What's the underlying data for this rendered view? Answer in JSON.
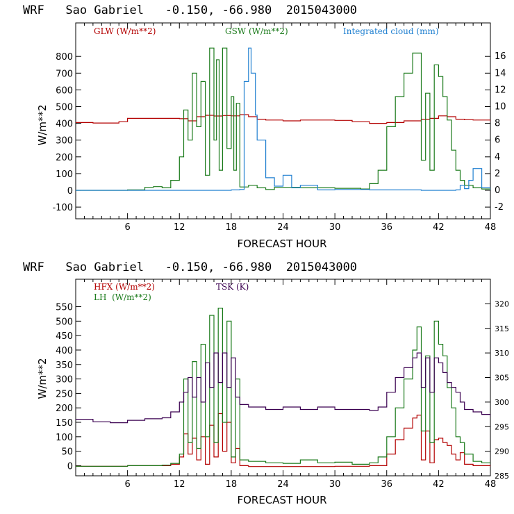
{
  "chart_data": [
    {
      "type": "line",
      "title": "WRF   Sao Gabriel   -0.150, -66.980  2015043000",
      "xlabel": "FORECAST HOUR",
      "ylabel": "W/m**2",
      "xlim": [
        0,
        48
      ],
      "ylim": [
        -170,
        1000
      ],
      "y2lim": [
        -3.4,
        20
      ],
      "xticks": [
        "6",
        "12",
        "18",
        "24",
        "30",
        "36",
        "42",
        "48"
      ],
      "yticks": [
        "-100",
        "0",
        "100",
        "200",
        "300",
        "400",
        "500",
        "600",
        "700",
        "800"
      ],
      "y2ticks": [
        "-2",
        "0",
        "2",
        "4",
        "6",
        "8",
        "10",
        "12",
        "14",
        "16"
      ],
      "legend": [
        {
          "label": "GLW (W/m**2)",
          "color": "#b30000"
        },
        {
          "label": "GSW (W/m**2)",
          "color": "#1a7a1a"
        },
        {
          "label": "Integrated cloud (mm)",
          "color": "#1e7fd0"
        }
      ],
      "series": [
        {
          "name": "GLW",
          "axis": "left",
          "color": "#b30000",
          "x": [
            0,
            2,
            4,
            5,
            6,
            8,
            10,
            12,
            13,
            14,
            15,
            16,
            17,
            18,
            19,
            20,
            21,
            22,
            24,
            26,
            28,
            30,
            32,
            34,
            36,
            38,
            40,
            41,
            42,
            43,
            44,
            45,
            46,
            48
          ],
          "y": [
            405,
            402,
            402,
            410,
            430,
            430,
            430,
            428,
            415,
            440,
            448,
            444,
            447,
            445,
            452,
            440,
            425,
            420,
            415,
            420,
            420,
            418,
            410,
            400,
            405,
            415,
            425,
            430,
            445,
            440,
            425,
            422,
            420,
            412
          ]
        },
        {
          "name": "GSW",
          "axis": "left",
          "color": "#1a7a1a",
          "x": [
            0,
            6,
            8,
            9,
            10,
            11,
            12,
            12.5,
            13,
            13.5,
            14,
            14.5,
            15,
            15.5,
            16,
            16.3,
            16.6,
            17,
            17.5,
            18,
            18.3,
            18.6,
            19,
            20,
            21,
            22,
            23,
            26,
            30,
            33,
            34,
            35,
            36,
            37,
            38,
            39,
            40,
            40.5,
            41,
            41.5,
            42,
            42.5,
            43,
            43.5,
            44,
            44.5,
            45,
            46,
            47,
            48
          ],
          "y": [
            0,
            3,
            18,
            22,
            15,
            60,
            200,
            480,
            300,
            700,
            380,
            650,
            90,
            850,
            300,
            780,
            120,
            850,
            250,
            560,
            120,
            520,
            20,
            30,
            15,
            5,
            18,
            15,
            12,
            8,
            40,
            120,
            380,
            560,
            700,
            820,
            180,
            580,
            120,
            750,
            680,
            560,
            420,
            240,
            120,
            60,
            30,
            15,
            8,
            5
          ]
        },
        {
          "name": "Integrated cloud",
          "axis": "right",
          "color": "#1e7fd0",
          "x": [
            0,
            10,
            18,
            19,
            19.5,
            20,
            20.3,
            20.8,
            21,
            22,
            23,
            24,
            25,
            26,
            28,
            30,
            34,
            40,
            44,
            44.5,
            45,
            45.5,
            46,
            47,
            48
          ],
          "y": [
            0,
            0,
            0.05,
            0.1,
            13,
            17,
            14,
            9,
            6,
            1.5,
            0.5,
            1.8,
            0.3,
            0.6,
            0.05,
            0.1,
            0.05,
            0,
            0.05,
            0.6,
            0.2,
            1.2,
            2.6,
            0.3,
            0
          ]
        }
      ]
    },
    {
      "type": "line",
      "title": "WRF   Sao Gabriel   -0.150, -66.980  2015043000",
      "xlabel": "FORECAST HOUR",
      "ylabel": "W/m**2",
      "xlim": [
        0,
        48
      ],
      "ylim": [
        -35,
        645
      ],
      "y2lim": [
        285,
        325
      ],
      "xticks": [
        "6",
        "12",
        "18",
        "24",
        "30",
        "36",
        "42",
        "48"
      ],
      "yticks": [
        "0",
        "50",
        "100",
        "150",
        "200",
        "250",
        "300",
        "350",
        "400",
        "450",
        "500",
        "550"
      ],
      "y2ticks": [
        "285",
        "290",
        "295",
        "300",
        "305",
        "310",
        "315",
        "320"
      ],
      "legend": [
        {
          "label": "HFX (W/m**2)",
          "color": "#b30000"
        },
        {
          "label": "LH  (W/m**2)",
          "color": "#1a7a1a"
        },
        {
          "label": "TSK (K)",
          "color": "#3a0050"
        }
      ],
      "series": [
        {
          "name": "HFX",
          "axis": "left",
          "color": "#b30000",
          "x": [
            0,
            6,
            10,
            11,
            12,
            12.5,
            13,
            13.5,
            14,
            14.5,
            15,
            15.5,
            16,
            16.5,
            17,
            17.5,
            18,
            18.5,
            19,
            20,
            24,
            30,
            34,
            36,
            37,
            38,
            39,
            39.5,
            40,
            40.5,
            41,
            41.5,
            42,
            42.5,
            43,
            43.5,
            44,
            44.5,
            45,
            46,
            48
          ],
          "y": [
            -2,
            0,
            0,
            5,
            30,
            110,
            40,
            95,
            20,
            100,
            5,
            140,
            30,
            180,
            50,
            150,
            10,
            60,
            0,
            -3,
            -3,
            -2,
            0,
            40,
            90,
            130,
            165,
            175,
            20,
            120,
            10,
            90,
            95,
            80,
            70,
            40,
            20,
            45,
            5,
            0,
            -3
          ]
        },
        {
          "name": "LH",
          "axis": "left",
          "color": "#1a7a1a",
          "x": [
            0,
            6,
            10,
            11,
            12,
            12.5,
            13,
            13.5,
            14,
            14.5,
            15,
            15.5,
            16,
            16.5,
            17,
            17.5,
            18,
            18.5,
            19,
            20,
            22,
            24,
            26,
            28,
            30,
            32,
            34,
            35,
            36,
            37,
            38,
            39,
            39.5,
            40,
            40.5,
            41,
            41.5,
            42,
            42.5,
            43,
            43.5,
            44,
            44.5,
            45,
            46,
            47,
            48
          ],
          "y": [
            -2,
            0,
            2,
            8,
            40,
            300,
            80,
            360,
            60,
            420,
            100,
            520,
            80,
            545,
            150,
            500,
            30,
            300,
            20,
            15,
            10,
            8,
            20,
            10,
            12,
            5,
            10,
            30,
            100,
            200,
            300,
            400,
            480,
            120,
            380,
            80,
            500,
            420,
            380,
            270,
            200,
            100,
            80,
            40,
            15,
            10,
            8
          ]
        },
        {
          "name": "TSK",
          "axis": "right",
          "color": "#3a0050",
          "x": [
            0,
            2,
            4,
            6,
            8,
            10,
            11,
            12,
            12.5,
            13,
            13.5,
            14,
            14.5,
            15,
            15.5,
            16,
            16.5,
            17,
            17.5,
            18,
            18.5,
            19,
            20,
            22,
            24,
            26,
            28,
            30,
            32,
            34,
            35,
            36,
            37,
            38,
            39,
            39.5,
            40,
            40.5,
            41,
            41.5,
            42,
            42.5,
            43,
            43.5,
            44,
            44.5,
            45,
            46,
            47,
            48
          ],
          "y": [
            296.5,
            296,
            295.8,
            296.3,
            296.6,
            296.8,
            298,
            300,
            302,
            305,
            301,
            305,
            300,
            308,
            303,
            310,
            304,
            310,
            303,
            309,
            301,
            299.5,
            299,
            298.5,
            299,
            298.5,
            299,
            298.5,
            298.5,
            298.3,
            299,
            302,
            305,
            307,
            309,
            310,
            303,
            309,
            302,
            309,
            308,
            306,
            304,
            303,
            302,
            300,
            298.5,
            298,
            297.5,
            297
          ]
        }
      ]
    }
  ]
}
